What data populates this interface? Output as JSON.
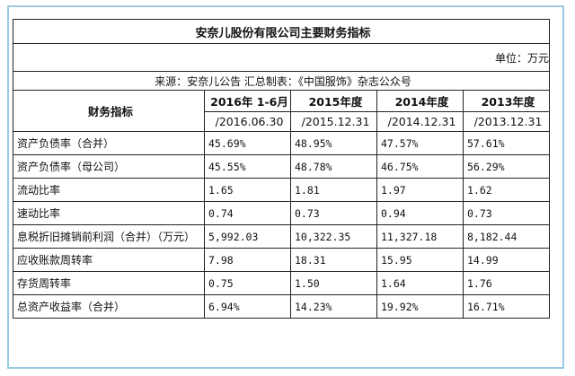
{
  "table": {
    "title": "安奈儿股份有限公司主要财务指标",
    "unit": "单位：万元",
    "source": "来源：安奈儿公告  汇总制表：《中国服饰》杂志公众号",
    "header_label": "财务指标",
    "columns": [
      {
        "period": "2016年 1-6月",
        "date": "/2016.06.30"
      },
      {
        "period": "2015年度",
        "date": "/2015.12.31"
      },
      {
        "period": "2014年度",
        "date": "/2014.12.31"
      },
      {
        "period": "2013年度",
        "date": "/2013.12.31"
      }
    ],
    "rows": [
      {
        "label": "资产负债率（合并）",
        "values": [
          "45.69%",
          "48.95%",
          "47.57%",
          "57.61%"
        ]
      },
      {
        "label": "资产负债率（母公司）",
        "values": [
          "45.55%",
          "48.78%",
          "46.75%",
          "56.29%"
        ]
      },
      {
        "label": "流动比率",
        "values": [
          "1.65",
          "1.81",
          "1.97",
          "1.62"
        ]
      },
      {
        "label": "速动比率",
        "values": [
          "0.74",
          "0.73",
          "0.94",
          "0.73"
        ]
      },
      {
        "label": "息税折旧摊销前利润（合并）（万元）",
        "values": [
          "5,992.03",
          "10,322.35",
          "11,327.18",
          "8,182.44"
        ]
      },
      {
        "label": "应收账款周转率",
        "values": [
          "7.98",
          "18.31",
          "15.95",
          "14.99"
        ]
      },
      {
        "label": "存货周转率",
        "values": [
          "0.75",
          "1.50",
          "1.64",
          "1.76"
        ]
      },
      {
        "label": "总资产收益率（合并）",
        "values": [
          "6.94%",
          "14.23%",
          "19.92%",
          "16.71%"
        ]
      }
    ]
  },
  "colors": {
    "frame_border": "#9cc8e6",
    "grid_line": "#222222"
  }
}
